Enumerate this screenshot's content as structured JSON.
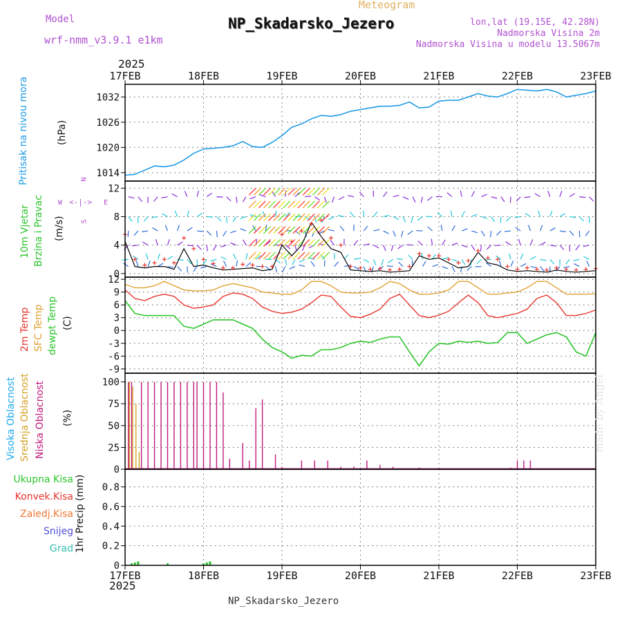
{
  "header": {
    "model_label": "Model",
    "model_name": "wrf-nmm_v3.9.1 e1km",
    "meteogram_label": "Meteogram",
    "station_title": "NP_Skadarsko_Jezero",
    "lonlat": "lon,lat (19.15E, 42.28N)",
    "elevation": "Nadmorska Visina 2m",
    "model_elevation": "Nadmorska Visina u modelu 13.5067m",
    "year_top": "2025",
    "year_bottom": "2025",
    "footer_station": "NP_Skadarsko_Jezero",
    "watermark": "made by Angel"
  },
  "colors": {
    "pressure": "#1e9be6",
    "temp2m": "#e8332c",
    "sfc_temp": "#e0a030",
    "dewpt": "#2cc52c",
    "wind_speed": "#000000",
    "gust": "#e8332c",
    "high_cloud": "#1eaaea",
    "mid_cloud": "#d4a020",
    "low_cloud": "#c0187a",
    "total_precip": "#2cc52c",
    "label_purple": "#b050d0",
    "grid": "#555555"
  },
  "x_axis": {
    "ticks": [
      "17FEB",
      "18FEB",
      "19FEB",
      "20FEB",
      "21FEB",
      "22FEB",
      "23FEB"
    ],
    "range_hours": [
      0,
      144
    ]
  },
  "chart_data": [
    {
      "type": "line",
      "panel": "pressure",
      "ylabel_lines": [
        "Pritisak na nivou mora"
      ],
      "unit": "(hPa)",
      "yticks": [
        1014,
        1020,
        1026,
        1032
      ],
      "ylim": [
        1012,
        1035
      ],
      "series": [
        {
          "x": [
            0,
            3,
            6,
            9,
            12,
            15,
            18,
            21,
            24,
            27,
            30,
            33,
            36,
            39,
            42,
            45,
            48,
            51,
            54,
            57,
            60,
            63,
            66,
            69,
            72,
            75,
            78,
            81,
            84,
            87,
            90,
            93,
            96,
            99,
            102,
            105,
            108,
            111,
            114,
            117,
            120,
            123,
            126,
            129,
            132,
            135,
            138,
            141,
            144
          ],
          "values": [
            1013.4,
            1013.6,
            1014.6,
            1015.6,
            1015.4,
            1015.8,
            1017.0,
            1018.6,
            1019.6,
            1019.8,
            1020.0,
            1020.4,
            1021.4,
            1020.2,
            1020.0,
            1021.2,
            1022.8,
            1024.8,
            1025.6,
            1026.8,
            1027.6,
            1027.4,
            1027.8,
            1028.6,
            1029.0,
            1029.4,
            1029.8,
            1029.8,
            1030.0,
            1030.8,
            1029.4,
            1029.6,
            1031.0,
            1031.2,
            1031.2,
            1032.0,
            1032.8,
            1032.2,
            1032.0,
            1032.8,
            1033.8,
            1033.6,
            1033.4,
            1033.8,
            1033.2,
            1032.0,
            1032.4,
            1032.8,
            1033.4
          ]
        }
      ]
    },
    {
      "type": "line",
      "panel": "wind",
      "ylabel_lines": [
        "10m Vjetar",
        "Brzina i Pravac"
      ],
      "unit": "(m/s)",
      "compass": {
        "n": "N",
        "s": "S",
        "e": "E",
        "w": "W"
      },
      "yticks": [
        0,
        4,
        8,
        12
      ],
      "ylim": [
        -0.5,
        13
      ],
      "series": [
        {
          "name": "speed",
          "x": [
            0,
            3,
            6,
            9,
            12,
            15,
            18,
            21,
            24,
            27,
            30,
            33,
            36,
            39,
            42,
            45,
            48,
            51,
            54,
            57,
            60,
            63,
            66,
            69,
            72,
            75,
            78,
            81,
            84,
            87,
            90,
            93,
            96,
            99,
            102,
            105,
            108,
            111,
            114,
            117,
            120,
            123,
            126,
            129,
            132,
            135,
            138,
            141,
            144
          ],
          "values": [
            4.5,
            1.0,
            0.8,
            1.0,
            1.0,
            0.6,
            3.5,
            1.0,
            1.2,
            0.8,
            0.5,
            0.6,
            0.7,
            0.8,
            0.4,
            0.6,
            4.0,
            2.5,
            4.0,
            7.2,
            5.2,
            3.5,
            3.0,
            0.5,
            0.4,
            0.3,
            0.4,
            0.2,
            0.3,
            0.4,
            2.5,
            2.0,
            2.2,
            1.5,
            0.8,
            1.0,
            3.0,
            1.5,
            1.2,
            0.5,
            0.3,
            0.4,
            0.3,
            0.2,
            0.5,
            0.3,
            0.2,
            0.3,
            0.4
          ]
        },
        {
          "name": "gust",
          "x": [
            0,
            3,
            6,
            9,
            12,
            15,
            18,
            21,
            24,
            27,
            30,
            33,
            36,
            39,
            42,
            45,
            48,
            51,
            54,
            57,
            60,
            63,
            66,
            69,
            72,
            75,
            78,
            81,
            84,
            87,
            90,
            93,
            96,
            99,
            102,
            105,
            108,
            111,
            114,
            117,
            120,
            123,
            126,
            129,
            132,
            135,
            138,
            141,
            144
          ],
          "values": [
            5.5,
            2.0,
            1.2,
            1.5,
            2.0,
            1.5,
            5.0,
            3.5,
            2.0,
            1.4,
            0.8,
            0.8,
            1.3,
            1.2,
            1.0,
            1.0,
            5.5,
            4.5,
            6.0,
            7.0,
            7.5,
            5.0,
            4.0,
            1.0,
            0.8,
            0.6,
            0.7,
            0.5,
            0.6,
            1.0,
            2.8,
            2.5,
            2.5,
            2.0,
            1.5,
            1.8,
            3.2,
            2.2,
            2.0,
            1.0,
            0.6,
            0.8,
            0.6,
            0.5,
            0.8,
            0.6,
            0.5,
            0.6,
            0.7
          ]
        }
      ]
    },
    {
      "type": "line",
      "panel": "temperature",
      "ylabel_lines": [
        "2m Temp",
        "SFC Temp",
        "dewpt Temp"
      ],
      "unit": "(C)",
      "yticks": [
        -9,
        -6,
        -3,
        0,
        3,
        6,
        9,
        12
      ],
      "ylim": [
        -10,
        12.5
      ],
      "series": [
        {
          "name": "2m Temp",
          "x": [
            0,
            3,
            6,
            9,
            12,
            15,
            18,
            21,
            24,
            27,
            30,
            33,
            36,
            39,
            42,
            45,
            48,
            51,
            54,
            57,
            60,
            63,
            66,
            69,
            72,
            75,
            78,
            81,
            84,
            87,
            90,
            93,
            96,
            99,
            102,
            105,
            108,
            111,
            114,
            117,
            120,
            123,
            126,
            129,
            132,
            135,
            138,
            141,
            144
          ],
          "values": [
            9.5,
            7.5,
            7.0,
            8.0,
            8.5,
            8.0,
            6.0,
            5.2,
            5.5,
            6.0,
            8.0,
            8.8,
            8.5,
            7.5,
            5.5,
            4.5,
            4.0,
            4.3,
            5.0,
            6.5,
            8.3,
            8.0,
            5.5,
            3.3,
            3.0,
            3.8,
            5.0,
            7.5,
            8.5,
            6.0,
            3.5,
            3.0,
            3.6,
            4.5,
            6.5,
            8.3,
            6.5,
            3.5,
            3.0,
            3.5,
            4.0,
            5.0,
            7.5,
            8.3,
            6.5,
            3.5,
            3.5,
            4.0,
            4.8
          ]
        },
        {
          "name": "SFC Temp",
          "x": [
            0,
            3,
            6,
            9,
            12,
            15,
            18,
            21,
            24,
            27,
            30,
            33,
            36,
            39,
            42,
            45,
            48,
            51,
            54,
            57,
            60,
            63,
            66,
            69,
            72,
            75,
            78,
            81,
            84,
            87,
            90,
            93,
            96,
            99,
            102,
            105,
            108,
            111,
            114,
            117,
            120,
            123,
            126,
            129,
            132,
            135,
            138,
            141,
            144
          ],
          "values": [
            10.8,
            10.0,
            10.0,
            10.5,
            11.5,
            10.5,
            9.5,
            9.3,
            9.3,
            9.5,
            10.5,
            11.0,
            10.5,
            10.0,
            9.0,
            8.8,
            8.5,
            8.5,
            9.5,
            11.5,
            11.5,
            10.5,
            9.0,
            8.8,
            8.8,
            9.0,
            10.0,
            11.5,
            11.0,
            9.5,
            8.5,
            8.5,
            8.8,
            9.5,
            11.5,
            11.5,
            10.0,
            8.5,
            8.5,
            8.8,
            9.0,
            10.0,
            11.5,
            11.5,
            10.0,
            8.5,
            8.5,
            8.5,
            8.6
          ]
        },
        {
          "name": "dewpt Temp",
          "x": [
            0,
            3,
            6,
            9,
            12,
            15,
            18,
            21,
            24,
            27,
            30,
            33,
            36,
            39,
            42,
            45,
            48,
            51,
            54,
            57,
            60,
            63,
            66,
            69,
            72,
            75,
            78,
            81,
            84,
            87,
            90,
            93,
            96,
            99,
            102,
            105,
            108,
            111,
            114,
            117,
            120,
            123,
            126,
            129,
            132,
            135,
            138,
            141,
            144
          ],
          "values": [
            7.0,
            4.0,
            3.5,
            3.5,
            3.5,
            3.5,
            1.0,
            0.5,
            1.5,
            2.5,
            2.5,
            2.5,
            1.5,
            0.5,
            -2.0,
            -4.0,
            -5.0,
            -6.5,
            -5.8,
            -6.0,
            -4.5,
            -4.5,
            -4.0,
            -3.0,
            -2.5,
            -2.8,
            -2.0,
            -1.5,
            -1.5,
            -5.0,
            -8.3,
            -5.0,
            -3.0,
            -3.2,
            -2.5,
            -2.8,
            -2.5,
            -3.0,
            -2.8,
            -0.5,
            -0.5,
            -3.0,
            -2.0,
            -1.0,
            -0.5,
            -1.5,
            -5.0,
            -6.0,
            -0.5
          ]
        }
      ]
    },
    {
      "type": "bar",
      "panel": "clouds",
      "ylabel_lines": [
        "Visoka Oblacnost",
        "Srednja Oblacnost",
        "Niska Oblacnost"
      ],
      "unit": "(%)",
      "yticks": [
        0,
        25,
        50,
        75,
        100
      ],
      "ylim": [
        0,
        110
      ],
      "series": [
        {
          "name": "Niska Oblacnost",
          "x": [
            1,
            2,
            5,
            7,
            9,
            11,
            13,
            15,
            17,
            19,
            21,
            22,
            24,
            26,
            28,
            30,
            32,
            34,
            36,
            38,
            40,
            42,
            44,
            46,
            48,
            50,
            54,
            58,
            62,
            66,
            70,
            74,
            78,
            82,
            86,
            90,
            94,
            98,
            102,
            106,
            110,
            114,
            118,
            120,
            122,
            124,
            126,
            128,
            130
          ],
          "values": [
            100,
            100,
            100,
            100,
            100,
            100,
            100,
            100,
            100,
            100,
            100,
            100,
            100,
            100,
            100,
            88,
            12,
            0,
            30,
            10,
            70,
            80,
            0,
            17,
            3,
            0,
            10,
            10,
            10,
            3,
            3,
            10,
            5,
            3,
            0,
            2,
            0,
            0,
            1,
            0,
            0,
            1,
            2,
            10,
            10,
            10,
            0,
            0,
            0
          ]
        },
        {
          "name": "Srednja Oblacnost",
          "x": [
            1,
            2,
            3,
            4
          ],
          "values": [
            100,
            95,
            75,
            20
          ]
        },
        {
          "name": "Visoka Oblacnost",
          "x": [
            20,
            21
          ],
          "values": [
            1,
            1
          ]
        }
      ]
    },
    {
      "type": "bar",
      "panel": "precip",
      "ylabel_lines": [
        "1hr Precip"
      ],
      "unit": "(mm)",
      "legend": [
        "Ukupna Kisa",
        "Konvek.Kisa",
        "Zaledj.Kisa",
        "Snijeg",
        "Grad"
      ],
      "yticks": [
        0,
        0.2,
        0.4,
        0.6,
        0.8
      ],
      "ylim": [
        0,
        0.98
      ],
      "series": [
        {
          "name": "Ukupna Kisa",
          "x": [
            2,
            3,
            4,
            13,
            24,
            25,
            26
          ],
          "values": [
            0.02,
            0.03,
            0.04,
            0.02,
            0.02,
            0.03,
            0.04
          ]
        }
      ]
    }
  ]
}
